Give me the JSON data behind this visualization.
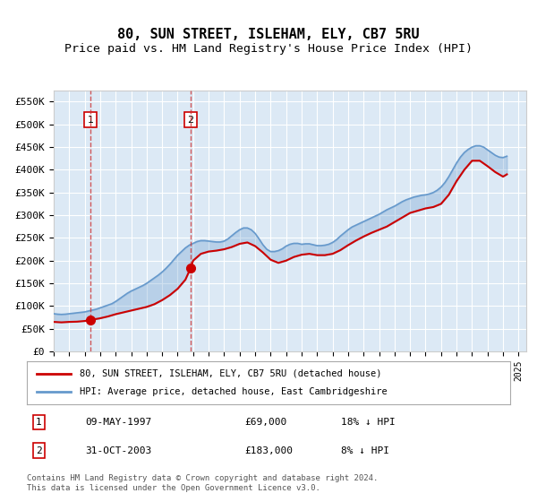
{
  "title": "80, SUN STREET, ISLEHAM, ELY, CB7 5RU",
  "subtitle": "Price paid vs. HM Land Registry's House Price Index (HPI)",
  "title_fontsize": 11,
  "subtitle_fontsize": 9.5,
  "xlabel": "",
  "ylabel": "",
  "ylim": [
    0,
    575000
  ],
  "yticks": [
    0,
    50000,
    100000,
    150000,
    200000,
    250000,
    300000,
    350000,
    400000,
    450000,
    500000,
    550000
  ],
  "ytick_labels": [
    "£0",
    "£50K",
    "£100K",
    "£150K",
    "£200K",
    "£250K",
    "£300K",
    "£350K",
    "£400K",
    "£450K",
    "£500K",
    "£550K"
  ],
  "xlim_start": 1995.0,
  "xlim_end": 2025.5,
  "background_color": "#ffffff",
  "plot_bg_color": "#dce9f5",
  "grid_color": "#ffffff",
  "red_line_color": "#cc0000",
  "blue_line_color": "#6699cc",
  "marker_color": "#cc0000",
  "dashed_line_color": "#cc3333",
  "sale1": {
    "year": 1997.36,
    "price": 69000,
    "label": "1",
    "date": "09-MAY-1997",
    "pct": "18% ↓ HPI"
  },
  "sale2": {
    "year": 2003.83,
    "price": 183000,
    "label": "2",
    "date": "31-OCT-2003",
    "pct": "8% ↓ HPI"
  },
  "legend_line1": "80, SUN STREET, ISLEHAM, ELY, CB7 5RU (detached house)",
  "legend_line2": "HPI: Average price, detached house, East Cambridgeshire",
  "footer": "Contains HM Land Registry data © Crown copyright and database right 2024.\nThis data is licensed under the Open Government Licence v3.0.",
  "hpi_years": [
    1995.0,
    1995.25,
    1995.5,
    1995.75,
    1996.0,
    1996.25,
    1996.5,
    1996.75,
    1997.0,
    1997.25,
    1997.5,
    1997.75,
    1998.0,
    1998.25,
    1998.5,
    1998.75,
    1999.0,
    1999.25,
    1999.5,
    1999.75,
    2000.0,
    2000.25,
    2000.5,
    2000.75,
    2001.0,
    2001.25,
    2001.5,
    2001.75,
    2002.0,
    2002.25,
    2002.5,
    2002.75,
    2003.0,
    2003.25,
    2003.5,
    2003.75,
    2004.0,
    2004.25,
    2004.5,
    2004.75,
    2005.0,
    2005.25,
    2005.5,
    2005.75,
    2006.0,
    2006.25,
    2006.5,
    2006.75,
    2007.0,
    2007.25,
    2007.5,
    2007.75,
    2008.0,
    2008.25,
    2008.5,
    2008.75,
    2009.0,
    2009.25,
    2009.5,
    2009.75,
    2010.0,
    2010.25,
    2010.5,
    2010.75,
    2011.0,
    2011.25,
    2011.5,
    2011.75,
    2012.0,
    2012.25,
    2012.5,
    2012.75,
    2013.0,
    2013.25,
    2013.5,
    2013.75,
    2014.0,
    2014.25,
    2014.5,
    2014.75,
    2015.0,
    2015.25,
    2015.5,
    2015.75,
    2016.0,
    2016.25,
    2016.5,
    2016.75,
    2017.0,
    2017.25,
    2017.5,
    2017.75,
    2018.0,
    2018.25,
    2018.5,
    2018.75,
    2019.0,
    2019.25,
    2019.5,
    2019.75,
    2020.0,
    2020.25,
    2020.5,
    2020.75,
    2021.0,
    2021.25,
    2021.5,
    2021.75,
    2022.0,
    2022.25,
    2022.5,
    2022.75,
    2023.0,
    2023.25,
    2023.5,
    2023.75,
    2024.0,
    2024.25
  ],
  "hpi_values": [
    83000,
    82000,
    81500,
    82000,
    83000,
    84000,
    85000,
    86000,
    87000,
    89000,
    91000,
    93000,
    96000,
    99000,
    102000,
    105000,
    110000,
    116000,
    122000,
    128000,
    133000,
    137000,
    141000,
    145000,
    150000,
    156000,
    162000,
    168000,
    175000,
    183000,
    192000,
    202000,
    212000,
    220000,
    228000,
    234000,
    238000,
    242000,
    244000,
    244000,
    243000,
    242000,
    241000,
    241000,
    243000,
    248000,
    255000,
    262000,
    268000,
    272000,
    272000,
    268000,
    260000,
    248000,
    235000,
    225000,
    220000,
    220000,
    222000,
    226000,
    232000,
    236000,
    238000,
    238000,
    236000,
    237000,
    237000,
    235000,
    233000,
    233000,
    234000,
    236000,
    240000,
    246000,
    254000,
    261000,
    268000,
    274000,
    278000,
    282000,
    286000,
    290000,
    294000,
    298000,
    302000,
    307000,
    312000,
    316000,
    320000,
    325000,
    330000,
    334000,
    337000,
    340000,
    342000,
    344000,
    345000,
    347000,
    350000,
    355000,
    362000,
    372000,
    385000,
    400000,
    415000,
    428000,
    438000,
    445000,
    450000,
    453000,
    453000,
    450000,
    444000,
    438000,
    432000,
    428000,
    427000,
    430000
  ],
  "red_years": [
    1995.0,
    1995.5,
    1996.0,
    1996.5,
    1997.0,
    1997.36,
    1997.5,
    1998.0,
    1998.5,
    1999.0,
    1999.5,
    2000.0,
    2000.5,
    2001.0,
    2001.5,
    2002.0,
    2002.5,
    2003.0,
    2003.5,
    2003.83,
    2004.0,
    2004.5,
    2005.0,
    2005.5,
    2006.0,
    2006.5,
    2007.0,
    2007.5,
    2008.0,
    2008.5,
    2009.0,
    2009.5,
    2010.0,
    2010.5,
    2011.0,
    2011.5,
    2012.0,
    2012.5,
    2013.0,
    2013.5,
    2014.0,
    2014.5,
    2015.0,
    2015.5,
    2016.0,
    2016.5,
    2017.0,
    2017.5,
    2018.0,
    2018.5,
    2019.0,
    2019.5,
    2020.0,
    2020.5,
    2021.0,
    2021.5,
    2022.0,
    2022.5,
    2023.0,
    2023.5,
    2024.0,
    2024.25
  ],
  "red_values": [
    65000,
    64000,
    65000,
    65500,
    67000,
    69000,
    70000,
    73000,
    77000,
    82000,
    86000,
    90000,
    94000,
    98000,
    104000,
    113000,
    124000,
    138000,
    158000,
    183000,
    200000,
    215000,
    220000,
    222000,
    225000,
    230000,
    237000,
    240000,
    232000,
    218000,
    202000,
    195000,
    200000,
    208000,
    213000,
    215000,
    212000,
    212000,
    215000,
    223000,
    234000,
    244000,
    253000,
    261000,
    268000,
    275000,
    285000,
    295000,
    305000,
    310000,
    315000,
    318000,
    325000,
    345000,
    375000,
    400000,
    420000,
    420000,
    408000,
    395000,
    385000,
    390000
  ]
}
